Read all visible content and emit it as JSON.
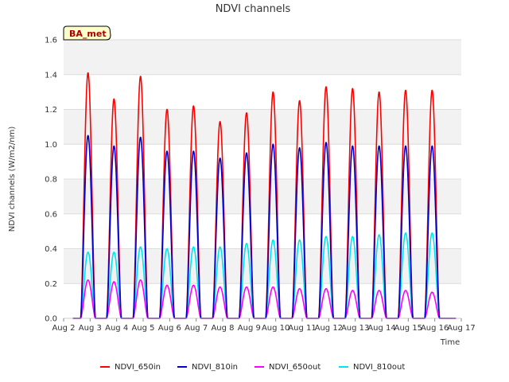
{
  "chart_data": {
    "type": "line",
    "title": "NDVI channels",
    "xlabel": "Time",
    "ylabel": "NDVI channels (W/m2/nm)",
    "badge": "BA_met",
    "ylim": [
      0,
      1.6
    ],
    "xlim": [
      2,
      17
    ],
    "yticks": [
      0.0,
      0.2,
      0.4,
      0.6,
      0.8,
      1.0,
      1.2,
      1.4,
      1.6
    ],
    "ytick_labels": [
      "0.0",
      "0.2",
      "0.4",
      "0.6",
      "0.8",
      "1.0",
      "1.2",
      "1.4",
      "1.6"
    ],
    "xticks": [
      2,
      3,
      4,
      5,
      6,
      7,
      8,
      9,
      10,
      11,
      12,
      13,
      14,
      15,
      16,
      17
    ],
    "xtick_labels": [
      "Aug 2",
      "Aug 3",
      "Aug 4",
      "Aug 5",
      "Aug 6",
      "Aug 7",
      "Aug 8",
      "Aug 9",
      "Aug 10",
      "Aug 11",
      "Aug 12",
      "Aug 13",
      "Aug 14",
      "Aug 15",
      "Aug 16",
      "Aug 17"
    ],
    "grid": true,
    "legend_position": "bottom",
    "day_centers": [
      2.92,
      3.9,
      4.9,
      5.9,
      6.9,
      7.9,
      8.9,
      9.9,
      10.9,
      11.9,
      12.9,
      13.9,
      14.9,
      15.9
    ],
    "series": [
      {
        "name": "NDVI_650in",
        "color": "#ff0000",
        "peaks": [
          1.41,
          1.26,
          1.39,
          1.2,
          1.22,
          1.13,
          1.18,
          1.3,
          1.25,
          1.33,
          1.32,
          1.3,
          1.31,
          1.31
        ]
      },
      {
        "name": "NDVI_810in",
        "color": "#0000cc",
        "peaks": [
          1.05,
          0.99,
          1.04,
          0.96,
          0.96,
          0.92,
          0.95,
          1.0,
          0.98,
          1.01,
          0.99,
          0.99,
          0.99,
          0.99
        ]
      },
      {
        "name": "NDVI_650out",
        "color": "#ff00ff",
        "peaks": [
          0.22,
          0.21,
          0.22,
          0.19,
          0.19,
          0.18,
          0.18,
          0.18,
          0.17,
          0.17,
          0.16,
          0.16,
          0.16,
          0.15
        ]
      },
      {
        "name": "NDVI_810out",
        "color": "#00e5ee",
        "peaks": [
          0.38,
          0.38,
          0.41,
          0.4,
          0.41,
          0.41,
          0.43,
          0.45,
          0.45,
          0.47,
          0.47,
          0.48,
          0.49,
          0.49
        ]
      }
    ]
  }
}
